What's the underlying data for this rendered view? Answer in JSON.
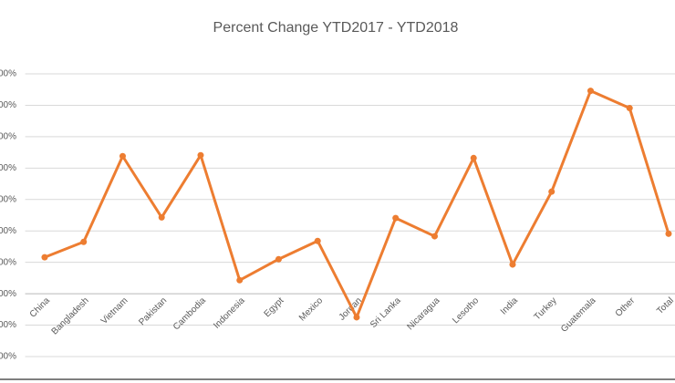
{
  "chart_data": {
    "type": "line",
    "title": "Percent Change YTD2017 - YTD2018",
    "categories": [
      "China",
      "Bangladesh",
      "Vietnam",
      "Pakistan",
      "Cambodia",
      "Indonesia",
      "Egypt",
      "Mexico",
      "Jordan",
      "Sri Lanka",
      "Nicaragua",
      "Lesotho",
      "India",
      "Turkey",
      "Guatemala",
      "Other",
      "Total"
    ],
    "values": [
      11.6,
      16.5,
      43.8,
      24.3,
      44.1,
      4.3,
      11.0,
      16.8,
      -7.5,
      24.1,
      18.3,
      43.2,
      9.3,
      32.5,
      64.6,
      59.1,
      19.1
    ],
    "color": "#ed7d31",
    "ylim": [
      -20,
      70
    ],
    "yticks": [
      {
        "value": -20,
        "label": "00%"
      },
      {
        "value": -10,
        "label": "00%"
      },
      {
        "value": 0,
        "label": "00%"
      },
      {
        "value": 10,
        "label": "00%"
      },
      {
        "value": 20,
        "label": "00%"
      },
      {
        "value": 30,
        "label": "00%"
      },
      {
        "value": 40,
        "label": "00%"
      },
      {
        "value": 50,
        "label": "00%"
      },
      {
        "value": 60,
        "label": "00%"
      },
      {
        "value": 70,
        "label": "00%"
      }
    ],
    "grid": true
  }
}
